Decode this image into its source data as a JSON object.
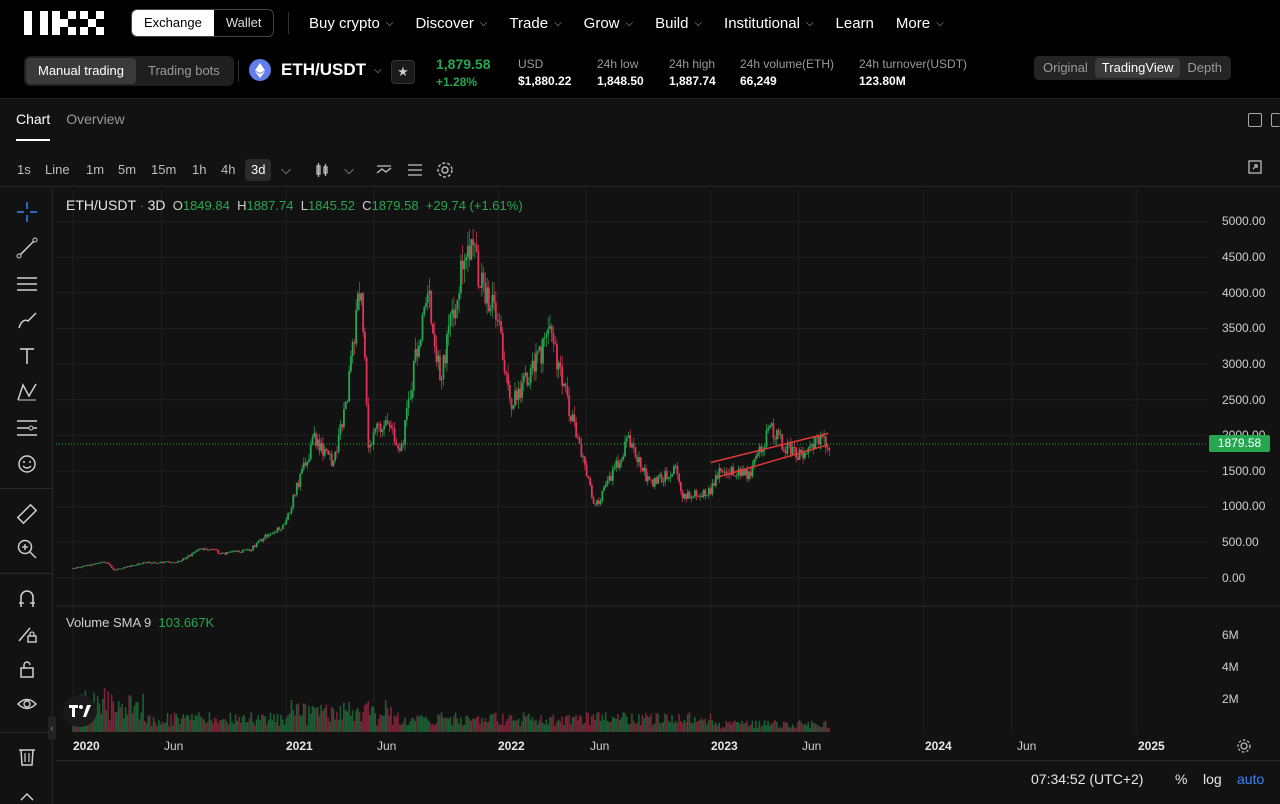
{
  "brand": {
    "logo_text": "OKX"
  },
  "header": {
    "segment": [
      "Exchange",
      "Wallet"
    ],
    "nav": [
      "Buy crypto",
      "Discover",
      "Trade",
      "Grow",
      "Build",
      "Institutional",
      "Learn",
      "More"
    ]
  },
  "ticker": {
    "tabs": [
      "Manual trading",
      "Trading bots"
    ],
    "pair": "ETH/USDT",
    "last_price": "1,879.58",
    "change": "+1.28%",
    "stats": [
      {
        "label": "USD",
        "value": "$1,880.22"
      },
      {
        "label": "24h low",
        "value": "1,848.50"
      },
      {
        "label": "24h high",
        "value": "1,887.74"
      },
      {
        "label": "24h volume(ETH)",
        "value": "66,249"
      },
      {
        "label": "24h turnover(USDT)",
        "value": "123.80M"
      }
    ]
  },
  "chart_panel": {
    "tabs": [
      "Chart",
      "Overview"
    ],
    "timeframes": [
      "1s",
      "Line",
      "1m",
      "5m",
      "15m",
      "1h",
      "4h",
      "3d"
    ],
    "active_timeframe": "3d",
    "views": [
      "Original",
      "TradingView",
      "Depth"
    ],
    "active_view": "TradingView"
  },
  "legend": {
    "pair": "ETH/USDT",
    "interval": "3D",
    "o_label": "O",
    "o": "1849.84",
    "h_label": "H",
    "h": "1887.74",
    "l_label": "L",
    "l": "1845.52",
    "c_label": "C",
    "c": "1879.58",
    "change": "+29.74 (+1.61%)",
    "volume_label": "Volume SMA 9",
    "volume_value": "103.667K"
  },
  "price_tag": "1879.58",
  "bottom": {
    "time": "07:34:52 (UTC+2)",
    "percent": "%",
    "log": "log",
    "auto": "auto"
  },
  "colors": {
    "up": "#25a750",
    "down": "#e0345a",
    "channel": "#e53935",
    "accent": "#3b82f6"
  },
  "chart_data": {
    "type": "candlestick",
    "title": "ETH/USDT",
    "interval": "3D",
    "y_ticks": [
      "5000.00",
      "4500.00",
      "4000.00",
      "3500.00",
      "3000.00",
      "2500.00",
      "2000.00",
      "1500.00",
      "1000.00",
      "500.00",
      "0.00"
    ],
    "volume_ticks": [
      "6M",
      "4M",
      "2M"
    ],
    "x_ticks": [
      {
        "label": "2020",
        "bold": true
      },
      {
        "label": "Jun",
        "bold": false
      },
      {
        "label": "2021",
        "bold": true
      },
      {
        "label": "Jun",
        "bold": false
      },
      {
        "label": "2022",
        "bold": true
      },
      {
        "label": "Jun",
        "bold": false
      },
      {
        "label": "2023",
        "bold": true
      },
      {
        "label": "Jun",
        "bold": false
      },
      {
        "label": "2024",
        "bold": true
      },
      {
        "label": "Jun",
        "bold": false
      },
      {
        "label": "2025",
        "bold": true
      }
    ],
    "ylim": [
      0,
      5000
    ],
    "last_close": 1879.58,
    "price_path": [
      [
        "2019-12-31",
        130
      ],
      [
        "2020-03-01",
        230
      ],
      [
        "2020-03-13",
        110
      ],
      [
        "2020-05-01",
        210
      ],
      [
        "2020-07-01",
        230
      ],
      [
        "2020-08-15",
        430
      ],
      [
        "2020-09-15",
        340
      ],
      [
        "2020-11-01",
        390
      ],
      [
        "2020-12-01",
        610
      ],
      [
        "2021-01-01",
        740
      ],
      [
        "2021-01-20",
        1250
      ],
      [
        "2021-02-20",
        1950
      ],
      [
        "2021-03-25",
        1600
      ],
      [
        "2021-04-15",
        2400
      ],
      [
        "2021-05-12",
        4200
      ],
      [
        "2021-05-23",
        1900
      ],
      [
        "2021-06-20",
        2200
      ],
      [
        "2021-07-20",
        1800
      ],
      [
        "2021-08-15",
        3200
      ],
      [
        "2021-09-05",
        3900
      ],
      [
        "2021-09-25",
        2800
      ],
      [
        "2021-11-10",
        4800
      ],
      [
        "2021-12-10",
        4000
      ],
      [
        "2022-01-01",
        3700
      ],
      [
        "2022-01-22",
        2400
      ],
      [
        "2022-03-01",
        2900
      ],
      [
        "2022-04-01",
        3400
      ],
      [
        "2022-05-10",
        2200
      ],
      [
        "2022-06-18",
        1000
      ],
      [
        "2022-07-20",
        1500
      ],
      [
        "2022-08-14",
        1950
      ],
      [
        "2022-09-20",
        1300
      ],
      [
        "2022-11-05",
        1550
      ],
      [
        "2022-11-15",
        1150
      ],
      [
        "2022-12-31",
        1200
      ],
      [
        "2023-01-20",
        1550
      ],
      [
        "2023-03-10",
        1450
      ],
      [
        "2023-04-15",
        2100
      ],
      [
        "2023-05-15",
        1800
      ],
      [
        "2023-06-15",
        1700
      ],
      [
        "2023-07-05",
        1950
      ],
      [
        "2023-07-22",
        1880
      ]
    ],
    "channel": {
      "upper": [
        [
          "2023-01-01",
          1620
        ],
        [
          "2023-07-22",
          2030
        ]
      ],
      "lower": [
        [
          "2023-01-15",
          1420
        ],
        [
          "2023-07-22",
          1870
        ]
      ]
    }
  }
}
